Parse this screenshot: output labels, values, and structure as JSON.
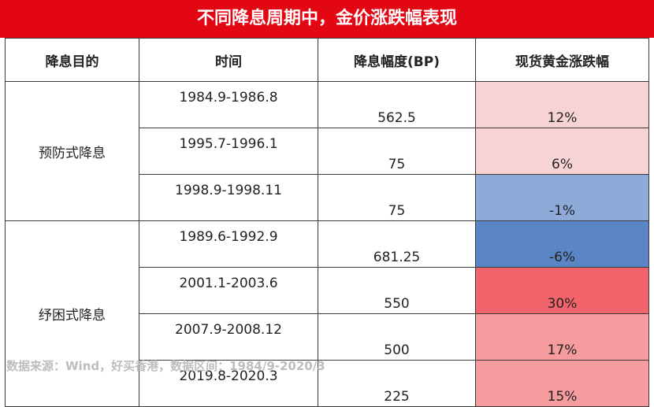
{
  "title": "不同降息周期中，金价涨跌幅表现",
  "headers": [
    "降息目的",
    "时间",
    "降息幅度(BP)",
    "现货黄金涨跌幅"
  ],
  "groups": [
    {
      "label": "预防式降息"
    },
    {
      "label": "纾困式降息"
    }
  ],
  "rows": [
    {
      "period": "1984.9-1986.8",
      "bp": "562.5",
      "change": "12%",
      "color": "#f8d3d5"
    },
    {
      "period": "1995.7-1996.1",
      "bp": "75",
      "change": "6%",
      "color": "#f8d3d5"
    },
    {
      "period": "1998.9-1998.11",
      "bp": "75",
      "change": "-1%",
      "color": "#8eaad9"
    },
    {
      "period": "1989.6-1992.9",
      "bp": "681.25",
      "change": "-6%",
      "color": "#5b86c5"
    },
    {
      "period": "2001.1-2003.6",
      "bp": "550",
      "change": "30%",
      "color": "#f2646c"
    },
    {
      "period": "2007.9-2008.12",
      "bp": "500",
      "change": "17%",
      "color": "#f69b9e"
    },
    {
      "period": "2019.8-2020.3",
      "bp": "225",
      "change": "15%",
      "color": "#f69b9e"
    }
  ],
  "source": "数据来源：Wind，好买香港，数据区间：1984/9-2020/3",
  "colors": {
    "title_bg": "#e30613"
  }
}
